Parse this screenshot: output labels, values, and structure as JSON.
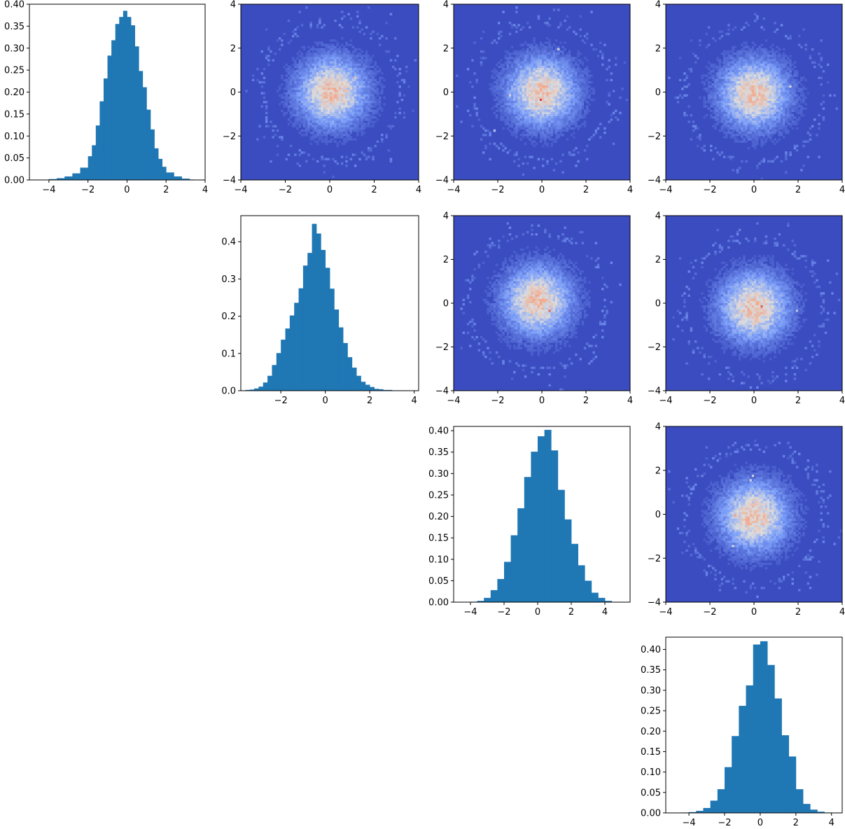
{
  "chart_data": [
    {
      "type": "bar",
      "title": "",
      "panel": "row-1-col-1",
      "xlim": [
        -5,
        4
      ],
      "ylim": [
        0,
        0.4
      ],
      "xticks": [
        -4,
        -2,
        0,
        2,
        4
      ],
      "yticks": [
        0.0,
        0.05,
        0.1,
        0.15,
        0.2,
        0.25,
        0.3,
        0.35,
        0.4
      ],
      "x_tick_labels": [
        "−4",
        "−2",
        "0",
        "2",
        "4"
      ],
      "y_tick_labels": [
        "0.00",
        "0.05",
        "0.10",
        "0.15",
        "0.20",
        "0.25",
        "0.30",
        "0.35",
        "0.40"
      ],
      "bin_edges": [
        -4.0,
        -3.6,
        -3.2,
        -2.8,
        -2.4,
        -2.0,
        -1.8,
        -1.6,
        -1.4,
        -1.2,
        -1.0,
        -0.8,
        -0.6,
        -0.4,
        -0.2,
        0.0,
        0.2,
        0.4,
        0.6,
        0.8,
        1.0,
        1.2,
        1.4,
        1.6,
        1.8,
        2.0,
        2.4,
        2.8,
        3.2,
        3.4
      ],
      "values": [
        0.002,
        0.004,
        0.008,
        0.015,
        0.028,
        0.054,
        0.079,
        0.124,
        0.179,
        0.231,
        0.283,
        0.318,
        0.355,
        0.371,
        0.385,
        0.371,
        0.352,
        0.304,
        0.248,
        0.211,
        0.16,
        0.115,
        0.072,
        0.048,
        0.03,
        0.017,
        0.008,
        0.003,
        0.001
      ]
    },
    {
      "type": "heatmap",
      "panel": "row-1-col-2",
      "xlim": [
        -4,
        4
      ],
      "ylim": [
        -4,
        4
      ],
      "xticks": [
        -4,
        -2,
        0,
        2,
        4
      ],
      "yticks": [
        -4,
        -2,
        0,
        2,
        4
      ],
      "x_tick_labels": [
        "−4",
        "−2",
        "0",
        "2",
        "4"
      ],
      "y_tick_labels": [
        "−4",
        "−2",
        "0",
        "2",
        "4"
      ],
      "colormap": "coolwarm",
      "background_color": "#3b4cc0",
      "center": [
        0.1,
        0.0
      ],
      "spread": 1.0,
      "seed": 11
    },
    {
      "type": "heatmap",
      "panel": "row-1-col-3",
      "xlim": [
        -4,
        4
      ],
      "ylim": [
        -4,
        4
      ],
      "xticks": [
        -4,
        -2,
        0,
        2,
        4
      ],
      "yticks": [
        -4,
        -2,
        0,
        2,
        4
      ],
      "x_tick_labels": [
        "−4",
        "−2",
        "0",
        "2",
        "4"
      ],
      "y_tick_labels": [
        "−4",
        "−2",
        "0",
        "2",
        "4"
      ],
      "colormap": "coolwarm",
      "background_color": "#3b4cc0",
      "center": [
        0.0,
        0.0
      ],
      "spread": 1.0,
      "seed": 23
    },
    {
      "type": "heatmap",
      "panel": "row-1-col-4",
      "xlim": [
        -4,
        4
      ],
      "ylim": [
        -4,
        4
      ],
      "xticks": [
        -4,
        -2,
        0,
        2,
        4
      ],
      "yticks": [
        -4,
        -2,
        0,
        2,
        4
      ],
      "x_tick_labels": [
        "−4",
        "−2",
        "0",
        "2",
        "4"
      ],
      "y_tick_labels": [
        "−4",
        "−2",
        "0",
        "2",
        "4"
      ],
      "colormap": "coolwarm",
      "background_color": "#3b4cc0",
      "center": [
        0.0,
        -0.1
      ],
      "spread": 1.0,
      "seed": 37
    },
    {
      "type": "bar",
      "panel": "row-2-col-2",
      "xlim": [
        -3.8,
        4.2
      ],
      "ylim": [
        0,
        0.47
      ],
      "xticks": [
        -2,
        0,
        2,
        4
      ],
      "yticks": [
        0.0,
        0.1,
        0.2,
        0.3,
        0.4
      ],
      "x_tick_labels": [
        "−2",
        "0",
        "2",
        "4"
      ],
      "y_tick_labels": [
        "0.0",
        "0.1",
        "0.2",
        "0.3",
        "0.4"
      ],
      "bin_edges": [
        -3.6,
        -3.4,
        -3.2,
        -3.0,
        -2.8,
        -2.6,
        -2.4,
        -2.2,
        -2.0,
        -1.8,
        -1.6,
        -1.4,
        -1.2,
        -1.0,
        -0.8,
        -0.6,
        -0.4,
        -0.2,
        0.0,
        0.2,
        0.4,
        0.6,
        0.8,
        1.0,
        1.2,
        1.4,
        1.6,
        1.8,
        2.0,
        2.2,
        2.4,
        2.6,
        3.0,
        3.4,
        3.8
      ],
      "values": [
        0.002,
        0.003,
        0.006,
        0.011,
        0.022,
        0.04,
        0.069,
        0.101,
        0.137,
        0.167,
        0.202,
        0.236,
        0.275,
        0.336,
        0.37,
        0.448,
        0.422,
        0.378,
        0.33,
        0.274,
        0.218,
        0.17,
        0.128,
        0.09,
        0.062,
        0.04,
        0.024,
        0.016,
        0.01,
        0.005,
        0.004,
        0.002,
        0.001,
        0.001
      ]
    },
    {
      "type": "heatmap",
      "panel": "row-2-col-3",
      "xlim": [
        -4,
        4
      ],
      "ylim": [
        -4,
        4
      ],
      "xticks": [
        -4,
        -2,
        0,
        2,
        4
      ],
      "yticks": [
        -4,
        -2,
        0,
        2,
        4
      ],
      "x_tick_labels": [
        "−4",
        "−2",
        "0",
        "2",
        "4"
      ],
      "y_tick_labels": [
        "−4",
        "−2",
        "0",
        "2",
        "4"
      ],
      "colormap": "coolwarm",
      "background_color": "#3b4cc0",
      "center": [
        -0.2,
        0.1
      ],
      "spread": 1.0,
      "seed": 51
    },
    {
      "type": "heatmap",
      "panel": "row-2-col-4",
      "xlim": [
        -4,
        4
      ],
      "ylim": [
        -4,
        4
      ],
      "xticks": [
        -4,
        -2,
        0,
        2,
        4
      ],
      "yticks": [
        -4,
        -2,
        0,
        2,
        4
      ],
      "x_tick_labels": [
        "−4",
        "−2",
        "0",
        "2",
        "4"
      ],
      "y_tick_labels": [
        "−4",
        "−2",
        "0",
        "2",
        "4"
      ],
      "colormap": "coolwarm",
      "background_color": "#3b4cc0",
      "center": [
        0.0,
        -0.2
      ],
      "spread": 1.0,
      "seed": 67
    },
    {
      "type": "bar",
      "panel": "row-3-col-3",
      "xlim": [
        -5,
        5.5
      ],
      "ylim": [
        0,
        0.41
      ],
      "xticks": [
        -4,
        -2,
        0,
        2,
        4
      ],
      "yticks": [
        0.0,
        0.05,
        0.1,
        0.15,
        0.2,
        0.25,
        0.3,
        0.35,
        0.4
      ],
      "x_tick_labels": [
        "−4",
        "−2",
        "0",
        "2",
        "4"
      ],
      "y_tick_labels": [
        "0.00",
        "0.05",
        "0.10",
        "0.15",
        "0.20",
        "0.25",
        "0.30",
        "0.35",
        "0.40"
      ],
      "bin_edges": [
        -4.0,
        -3.6,
        -3.2,
        -2.8,
        -2.4,
        -2.0,
        -1.6,
        -1.2,
        -0.8,
        -0.4,
        0.0,
        0.4,
        0.8,
        1.2,
        1.6,
        2.0,
        2.4,
        2.8,
        3.2,
        3.6,
        4.0,
        4.4
      ],
      "values": [
        0.001,
        0.003,
        0.01,
        0.028,
        0.054,
        0.094,
        0.156,
        0.219,
        0.292,
        0.351,
        0.387,
        0.402,
        0.354,
        0.262,
        0.193,
        0.136,
        0.086,
        0.05,
        0.022,
        0.01,
        0.003
      ]
    },
    {
      "type": "heatmap",
      "panel": "row-3-col-4",
      "xlim": [
        -4,
        4
      ],
      "ylim": [
        -4,
        4
      ],
      "xticks": [
        -4,
        -2,
        0,
        2,
        4
      ],
      "yticks": [
        -4,
        -2,
        0,
        2,
        4
      ],
      "x_tick_labels": [
        "−4",
        "−2",
        "0",
        "2",
        "4"
      ],
      "y_tick_labels": [
        "−4",
        "−2",
        "0",
        "2",
        "4"
      ],
      "colormap": "coolwarm",
      "background_color": "#3b4cc0",
      "center": [
        0.0,
        -0.1
      ],
      "spread": 1.0,
      "seed": 83
    },
    {
      "type": "bar",
      "panel": "row-4-col-4",
      "xlim": [
        -5.3,
        4.6
      ],
      "ylim": [
        0,
        0.43
      ],
      "xticks": [
        -4,
        -2,
        0,
        2,
        4
      ],
      "yticks": [
        0.0,
        0.05,
        0.1,
        0.15,
        0.2,
        0.25,
        0.3,
        0.35,
        0.4
      ],
      "x_tick_labels": [
        "−4",
        "−2",
        "0",
        "2",
        "4"
      ],
      "y_tick_labels": [
        "0.00",
        "0.05",
        "0.10",
        "0.15",
        "0.20",
        "0.25",
        "0.30",
        "0.35",
        "0.40"
      ],
      "bin_edges": [
        -4.4,
        -4.0,
        -3.6,
        -3.2,
        -2.8,
        -2.4,
        -2.0,
        -1.6,
        -1.2,
        -0.8,
        -0.4,
        0.0,
        0.4,
        0.8,
        1.2,
        1.6,
        2.0,
        2.4,
        2.8,
        3.2,
        3.6,
        4.0
      ],
      "values": [
        0.001,
        0.002,
        0.005,
        0.012,
        0.03,
        0.058,
        0.112,
        0.188,
        0.262,
        0.312,
        0.412,
        0.42,
        0.362,
        0.28,
        0.19,
        0.138,
        0.058,
        0.022,
        0.008,
        0.003,
        0.001
      ]
    }
  ]
}
